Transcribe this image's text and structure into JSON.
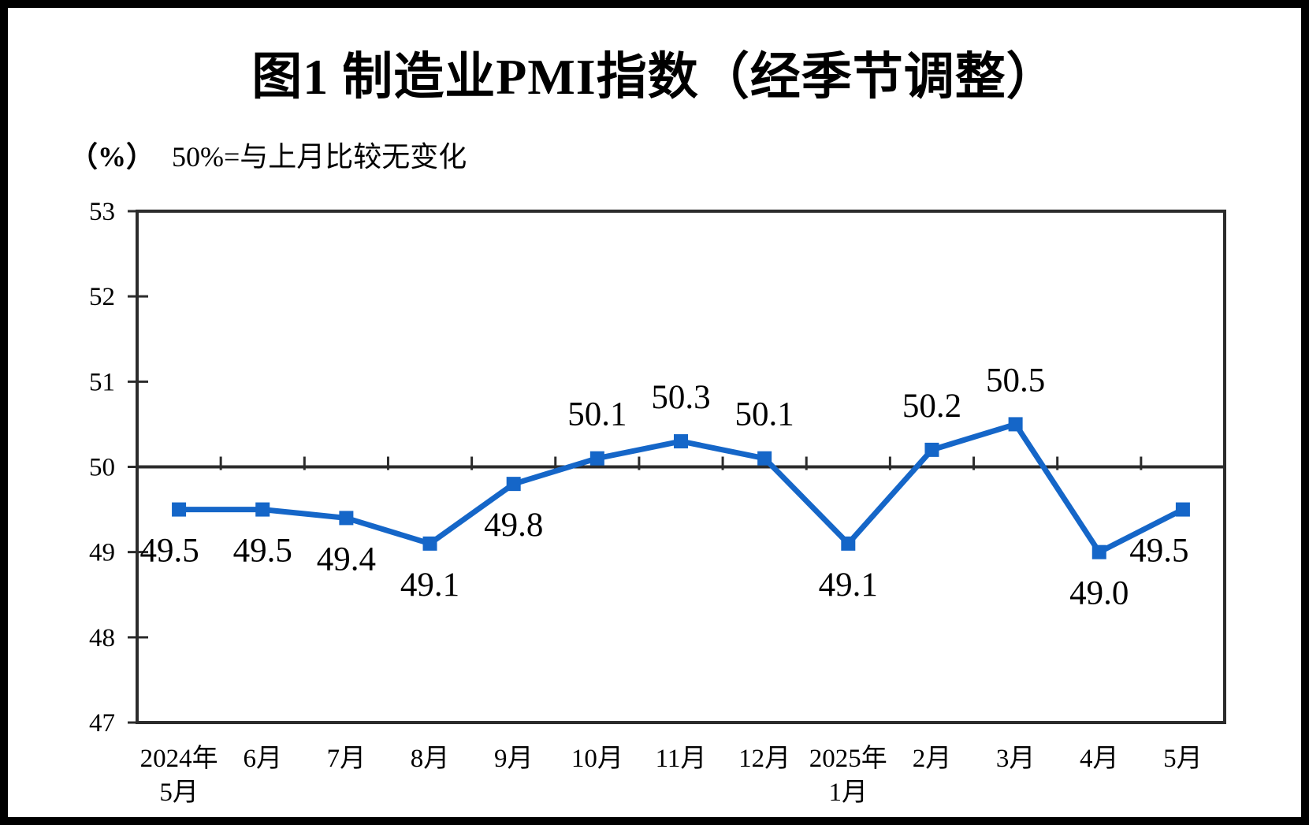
{
  "figure": {
    "title": "图1  制造业PMI指数（经季节调整）",
    "unit_label": "（%）",
    "baseline_note": "50%=与上月比较无变化"
  },
  "chart_data": {
    "type": "line",
    "title": "图1 制造业PMI指数（经季节调整）",
    "unit": "%",
    "annotation": "50%=与上月比较无变化",
    "categories": [
      [
        "2024年",
        "5月"
      ],
      [
        "6月"
      ],
      [
        "7月"
      ],
      [
        "8月"
      ],
      [
        "9月"
      ],
      [
        "10月"
      ],
      [
        "11月"
      ],
      [
        "12月"
      ],
      [
        "2025年",
        "1月"
      ],
      [
        "2月"
      ],
      [
        "3月"
      ],
      [
        "4月"
      ],
      [
        "5月"
      ]
    ],
    "values": [
      49.5,
      49.5,
      49.4,
      49.1,
      49.8,
      50.1,
      50.3,
      50.1,
      49.1,
      50.2,
      50.5,
      49.0,
      49.5
    ],
    "value_labels": [
      "49.5",
      "49.5",
      "49.4",
      "49.1",
      "49.8",
      "50.1",
      "50.3",
      "50.1",
      "49.1",
      "50.2",
      "50.5",
      "49.0",
      "49.5"
    ],
    "yticks": [
      47,
      48,
      49,
      50,
      51,
      52,
      53
    ],
    "ylim": [
      47,
      53
    ],
    "baseline": 50,
    "grid": "off",
    "legend": "none",
    "marker": "square",
    "line_color": "#1566c8",
    "axis_color": "#2b2b2b",
    "text_color": "#000000"
  }
}
